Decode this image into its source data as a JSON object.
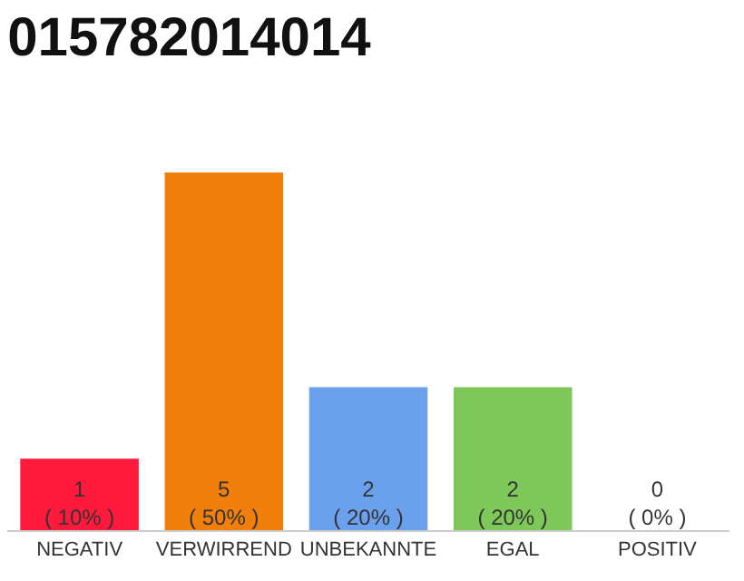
{
  "chart_data": {
    "type": "bar",
    "title": "015782014014",
    "categories": [
      "NEGATIV",
      "VERWIRREND",
      "UNBEKANNTE",
      "EGAL",
      "POSITIV"
    ],
    "values": [
      1,
      5,
      2,
      2,
      0
    ],
    "colors": [
      "#ff1a3c",
      "#f07f0c",
      "#6aa0ec",
      "#7ec85a",
      "#e0e0e0"
    ],
    "value_labels": [
      "1\n( 10% )",
      "5\n( 50% )",
      "2\n( 20% )",
      "2\n( 20% )",
      "0\n( 0% )"
    ],
    "ylim": [
      0,
      5
    ],
    "tick_labels": "x"
  }
}
